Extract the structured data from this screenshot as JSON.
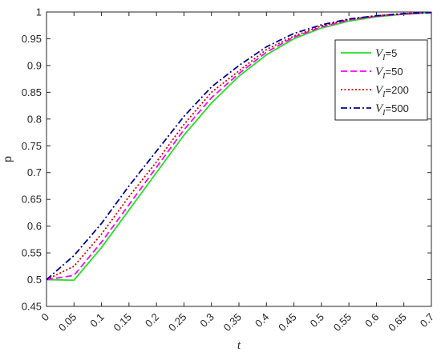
{
  "chart_data": {
    "type": "line",
    "x_label": "t",
    "y_label": "p",
    "x": [
      0,
      0.05,
      0.1,
      0.15,
      0.2,
      0.25,
      0.3,
      0.35,
      0.4,
      0.45,
      0.5,
      0.55,
      0.6,
      0.65,
      0.7
    ],
    "series": [
      {
        "name": "VI=5",
        "color": "#22e022",
        "linestyle": "solid",
        "values": [
          0.5,
          0.499,
          0.56,
          0.63,
          0.7,
          0.77,
          0.83,
          0.88,
          0.92,
          0.95,
          0.97,
          0.983,
          0.991,
          0.996,
          0.999
        ]
      },
      {
        "name": "VI=50",
        "color": "#ff00ff",
        "linestyle": "dashed",
        "values": [
          0.5,
          0.508,
          0.57,
          0.64,
          0.71,
          0.78,
          0.84,
          0.885,
          0.925,
          0.953,
          0.972,
          0.985,
          0.992,
          0.996,
          0.999
        ]
      },
      {
        "name": "VI=200",
        "color": "#d40000",
        "linestyle": "dotted",
        "values": [
          0.5,
          0.525,
          0.585,
          0.655,
          0.72,
          0.79,
          0.85,
          0.89,
          0.93,
          0.955,
          0.974,
          0.986,
          0.993,
          0.997,
          0.999
        ]
      },
      {
        "name": "VI=500",
        "color": "#00008b",
        "linestyle": "dashdot",
        "values": [
          0.5,
          0.545,
          0.605,
          0.675,
          0.74,
          0.805,
          0.86,
          0.9,
          0.935,
          0.96,
          0.976,
          0.987,
          0.993,
          0.997,
          0.999
        ]
      }
    ],
    "xlim": [
      0,
      0.7
    ],
    "xticks": [
      0,
      0.05,
      0.1,
      0.15,
      0.2,
      0.25,
      0.3,
      0.35,
      0.4,
      0.45,
      0.5,
      0.55,
      0.6,
      0.65,
      0.7
    ],
    "ylim": [
      0.45,
      1
    ],
    "yticks": [
      0.45,
      0.5,
      0.55,
      0.6,
      0.65,
      0.7,
      0.75,
      0.8,
      0.85,
      0.9,
      0.95,
      1
    ],
    "grid": false,
    "legend": "upper right"
  }
}
